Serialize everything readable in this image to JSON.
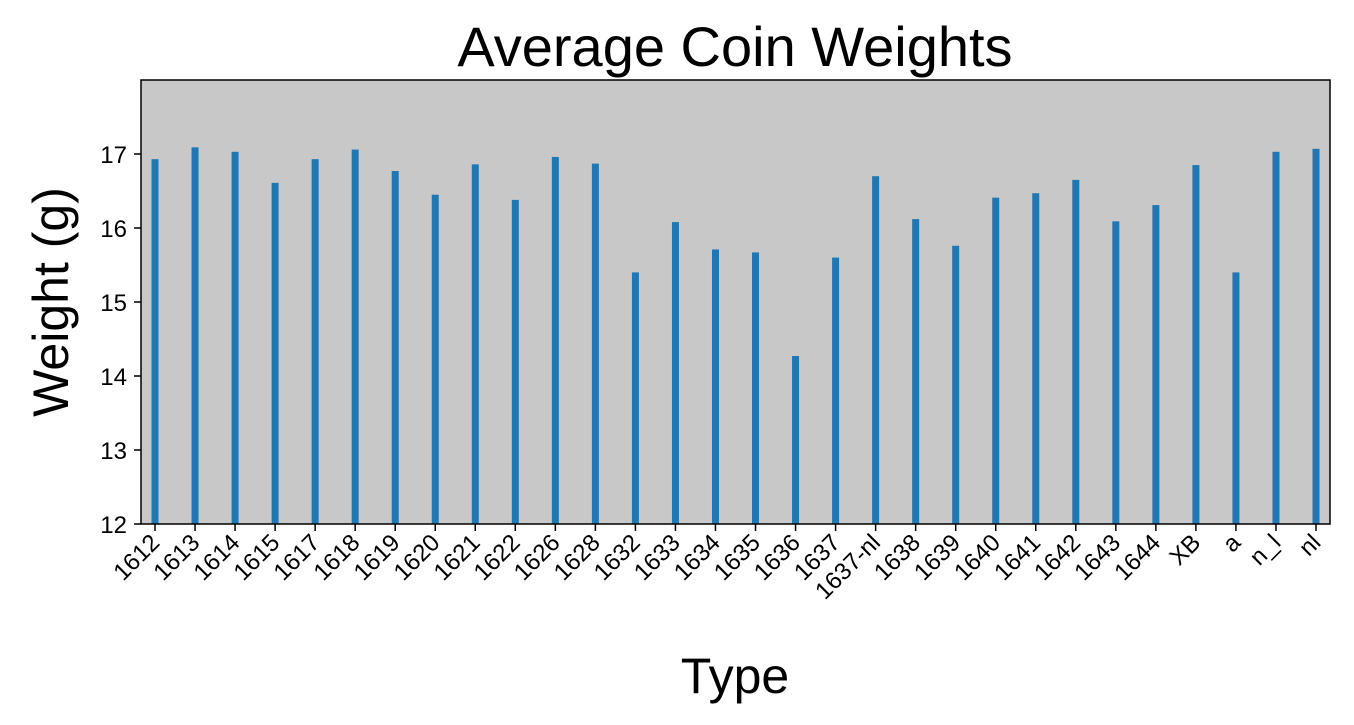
{
  "chart_data": {
    "type": "bar",
    "title": "Average Coin Weights",
    "xlabel": "Type",
    "ylabel": "Weight (g)",
    "ylim": [
      12,
      18
    ],
    "yticks": [
      12,
      13,
      14,
      15,
      16,
      17
    ],
    "grid": false,
    "bar_color": "#1f77b4",
    "plot_background": "#c8c8c8",
    "categories": [
      "1612",
      "1613",
      "1614",
      "1615",
      "1617",
      "1618",
      "1619",
      "1620",
      "1621",
      "1622",
      "1626",
      "1628",
      "1632",
      "1633",
      "1634",
      "1635",
      "1636",
      "1637",
      "1637-nl",
      "1638",
      "1639",
      "1640",
      "1641",
      "1642",
      "1643",
      "1644",
      "XB",
      "a",
      "n_l",
      "nl"
    ],
    "values": [
      16.93,
      17.09,
      17.03,
      16.61,
      16.93,
      17.06,
      16.77,
      16.45,
      16.86,
      16.38,
      16.96,
      16.87,
      15.4,
      16.08,
      15.71,
      15.67,
      14.27,
      15.6,
      16.7,
      16.12,
      15.76,
      16.41,
      16.47,
      16.65,
      16.09,
      16.31,
      16.85,
      15.4,
      17.03,
      17.07
    ]
  }
}
